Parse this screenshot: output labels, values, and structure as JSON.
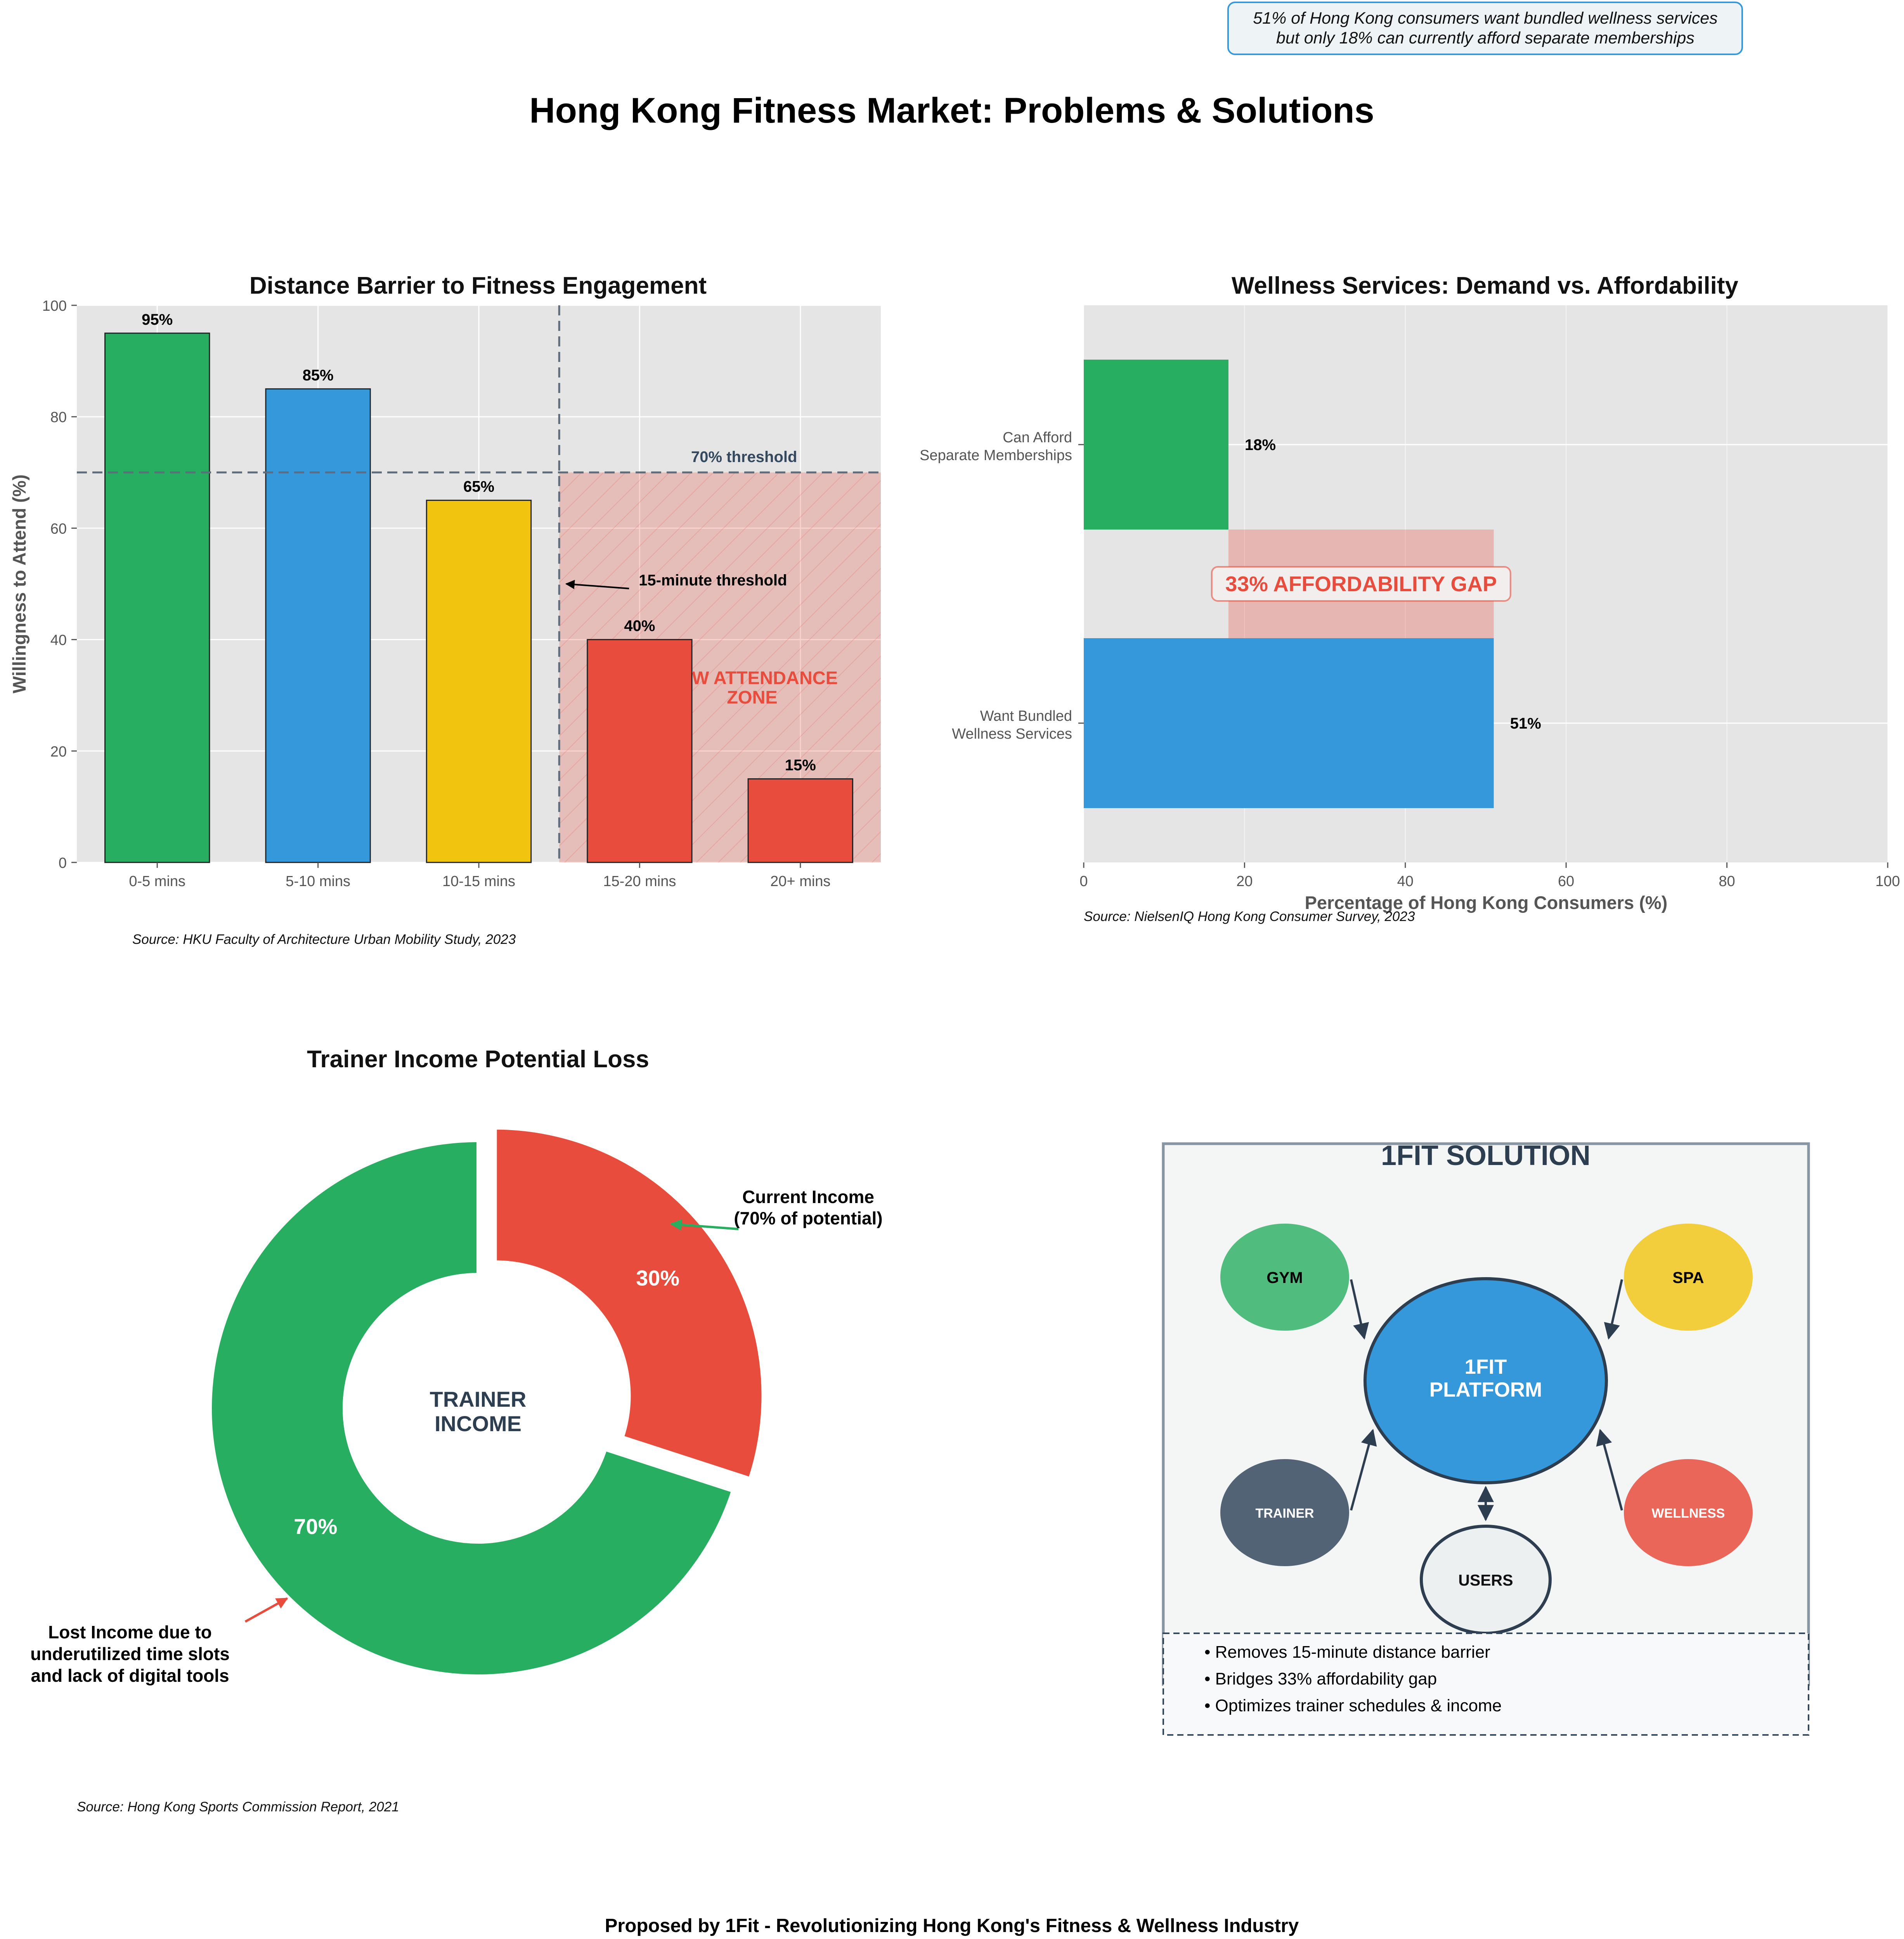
{
  "page": {
    "main_title": "Hong Kong Fitness Market: Problems & Solutions",
    "top_callout": [
      "51% of Hong Kong consumers want bundled wellness services",
      "but only 18% can currently afford separate memberships"
    ],
    "footer": "Proposed by 1Fit - Revolutionizing Hong Kong's Fitness & Wellness Industry"
  },
  "chart_data": [
    {
      "id": "distance",
      "type": "bar",
      "title": "Distance Barrier to Fitness Engagement",
      "ylabel": "Willingness to Attend (%)",
      "xlabel": "",
      "categories": [
        "0-5 mins",
        "5-10 mins",
        "10-15 mins",
        "15-20 mins",
        "20+ mins"
      ],
      "values": [
        95,
        85,
        65,
        40,
        15
      ],
      "value_labels": [
        "95%",
        "85%",
        "65%",
        "40%",
        "15%"
      ],
      "colors": [
        "#27ae60",
        "#3498db",
        "#f1c40f",
        "#e74c3c",
        "#e74c3c"
      ],
      "ylim": [
        0,
        100
      ],
      "yticks": [
        0,
        20,
        40,
        60,
        80,
        100
      ],
      "grid": true,
      "threshold": {
        "value": 70,
        "label": "70% threshold",
        "color": "#5d6d7e"
      },
      "vertical_annotation": {
        "label": "15-minute threshold",
        "position": "between 10-15 mins and 15-20 mins"
      },
      "zone_label": [
        "LOW ATTENDANCE",
        "ZONE"
      ],
      "zone_color": "#e74c3c",
      "source": "Source: HKU Faculty of Architecture Urban Mobility Study, 2023"
    },
    {
      "id": "wellness",
      "type": "bar",
      "orientation": "horizontal",
      "title": "Wellness Services: Demand vs. Affordability",
      "xlabel": "Percentage of Hong Kong Consumers (%)",
      "ylabel": "",
      "categories": [
        [
          "Can Afford",
          "Separate Memberships"
        ],
        [
          "Want Bundled",
          "Wellness Services"
        ]
      ],
      "values": [
        18,
        51
      ],
      "value_labels": [
        "18%",
        "51%"
      ],
      "colors": [
        "#27ae60",
        "#3498db"
      ],
      "xlim": [
        0,
        100
      ],
      "xticks": [
        0,
        20,
        40,
        60,
        80,
        100
      ],
      "grid": true,
      "gap": {
        "from": 18,
        "to": 51,
        "label": "33% AFFORDABILITY GAP",
        "color": "#e74c3c"
      },
      "source": "Source: NielsenIQ Hong Kong Consumer Survey, 2023"
    },
    {
      "id": "trainer",
      "type": "pie",
      "style": "donut",
      "title": "Trainer Income Potential Loss",
      "center_label": [
        "TRAINER",
        "INCOME"
      ],
      "slices": [
        {
          "value": 30,
          "label": "30%",
          "color": "#e74c3c",
          "exploded": true
        },
        {
          "value": 70,
          "label": "70%",
          "color": "#27ae60",
          "exploded": false
        }
      ],
      "annotations": [
        {
          "text": [
            "Current Income",
            "(70% of potential)"
          ],
          "arrow_color": "#27ae60"
        },
        {
          "text": [
            "Lost Income due to",
            "underutilized time slots",
            "and lack of digital tools"
          ],
          "arrow_color": "#e74c3c"
        }
      ],
      "source": "Source: Hong Kong Sports Commission Report, 2021"
    }
  ],
  "solution": {
    "title": "1FIT SOLUTION",
    "platform": [
      "1FIT",
      "PLATFORM"
    ],
    "nodes": {
      "gym": "GYM",
      "spa": "SPA",
      "trainer": "TRAINER",
      "wellness": "WELLNESS",
      "users": "USERS"
    },
    "colors": {
      "gym": "#27ae60",
      "spa": "#f1c40f",
      "trainer": "#34495e",
      "wellness": "#e74c3c",
      "platform": "#3498db",
      "dark": "#2c3e50"
    },
    "bullets": [
      "• Removes 15-minute distance barrier",
      "• Bridges 33% affordability gap",
      "• Optimizes trainer schedules & income"
    ]
  }
}
